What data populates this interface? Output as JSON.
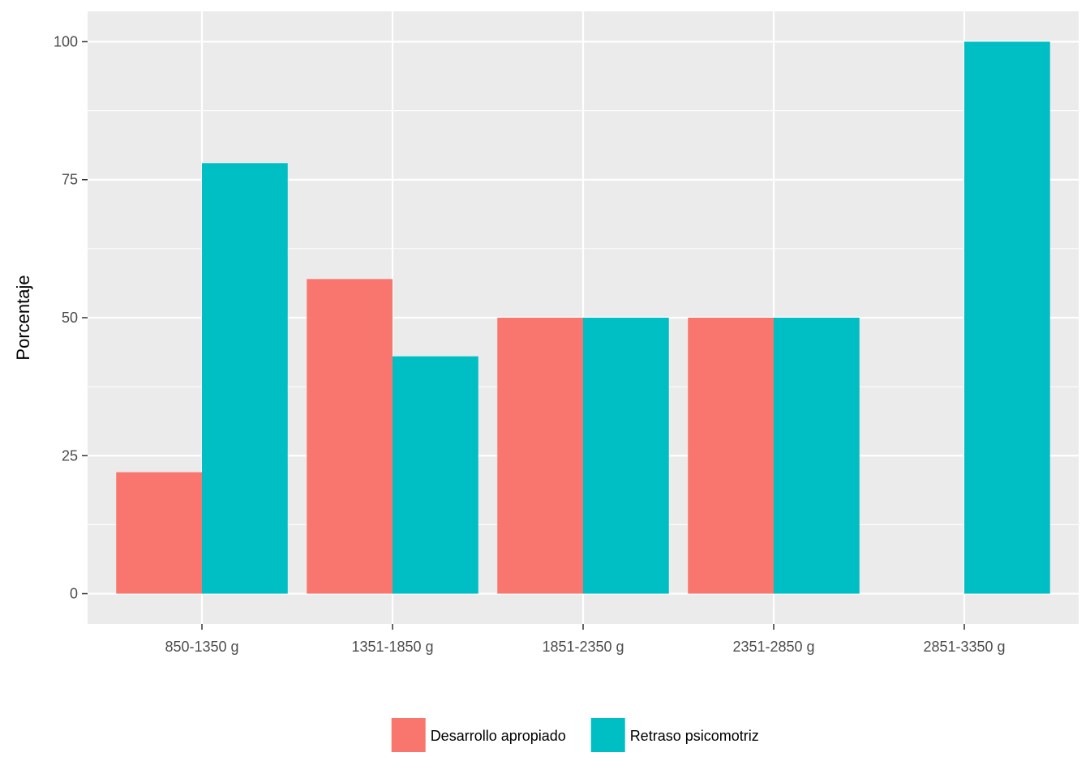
{
  "chart_data": {
    "type": "bar",
    "title": "",
    "xlabel": "",
    "ylabel": "Porcentaje",
    "categories": [
      "850-1350 g",
      "1351-1850 g",
      "1851-2350 g",
      "2351-2850 g",
      "2851-3350 g"
    ],
    "series": [
      {
        "name": "Desarrollo apropiado",
        "color": "#F8766D",
        "values": [
          22,
          57,
          50,
          50,
          0
        ]
      },
      {
        "name": "Retraso psicomotriz",
        "color": "#00BFC4",
        "values": [
          78,
          43,
          50,
          50,
          100
        ]
      }
    ],
    "ylim": [
      -5.5,
      105.5
    ],
    "yticks": [
      0,
      25,
      50,
      75,
      100
    ],
    "ytick_labels": [
      "0",
      "25",
      "50",
      "75",
      "100"
    ],
    "grid": true,
    "legend_position": "bottom",
    "panel_color": "#EBEBEB",
    "grid_color": "#FFFFFF"
  }
}
